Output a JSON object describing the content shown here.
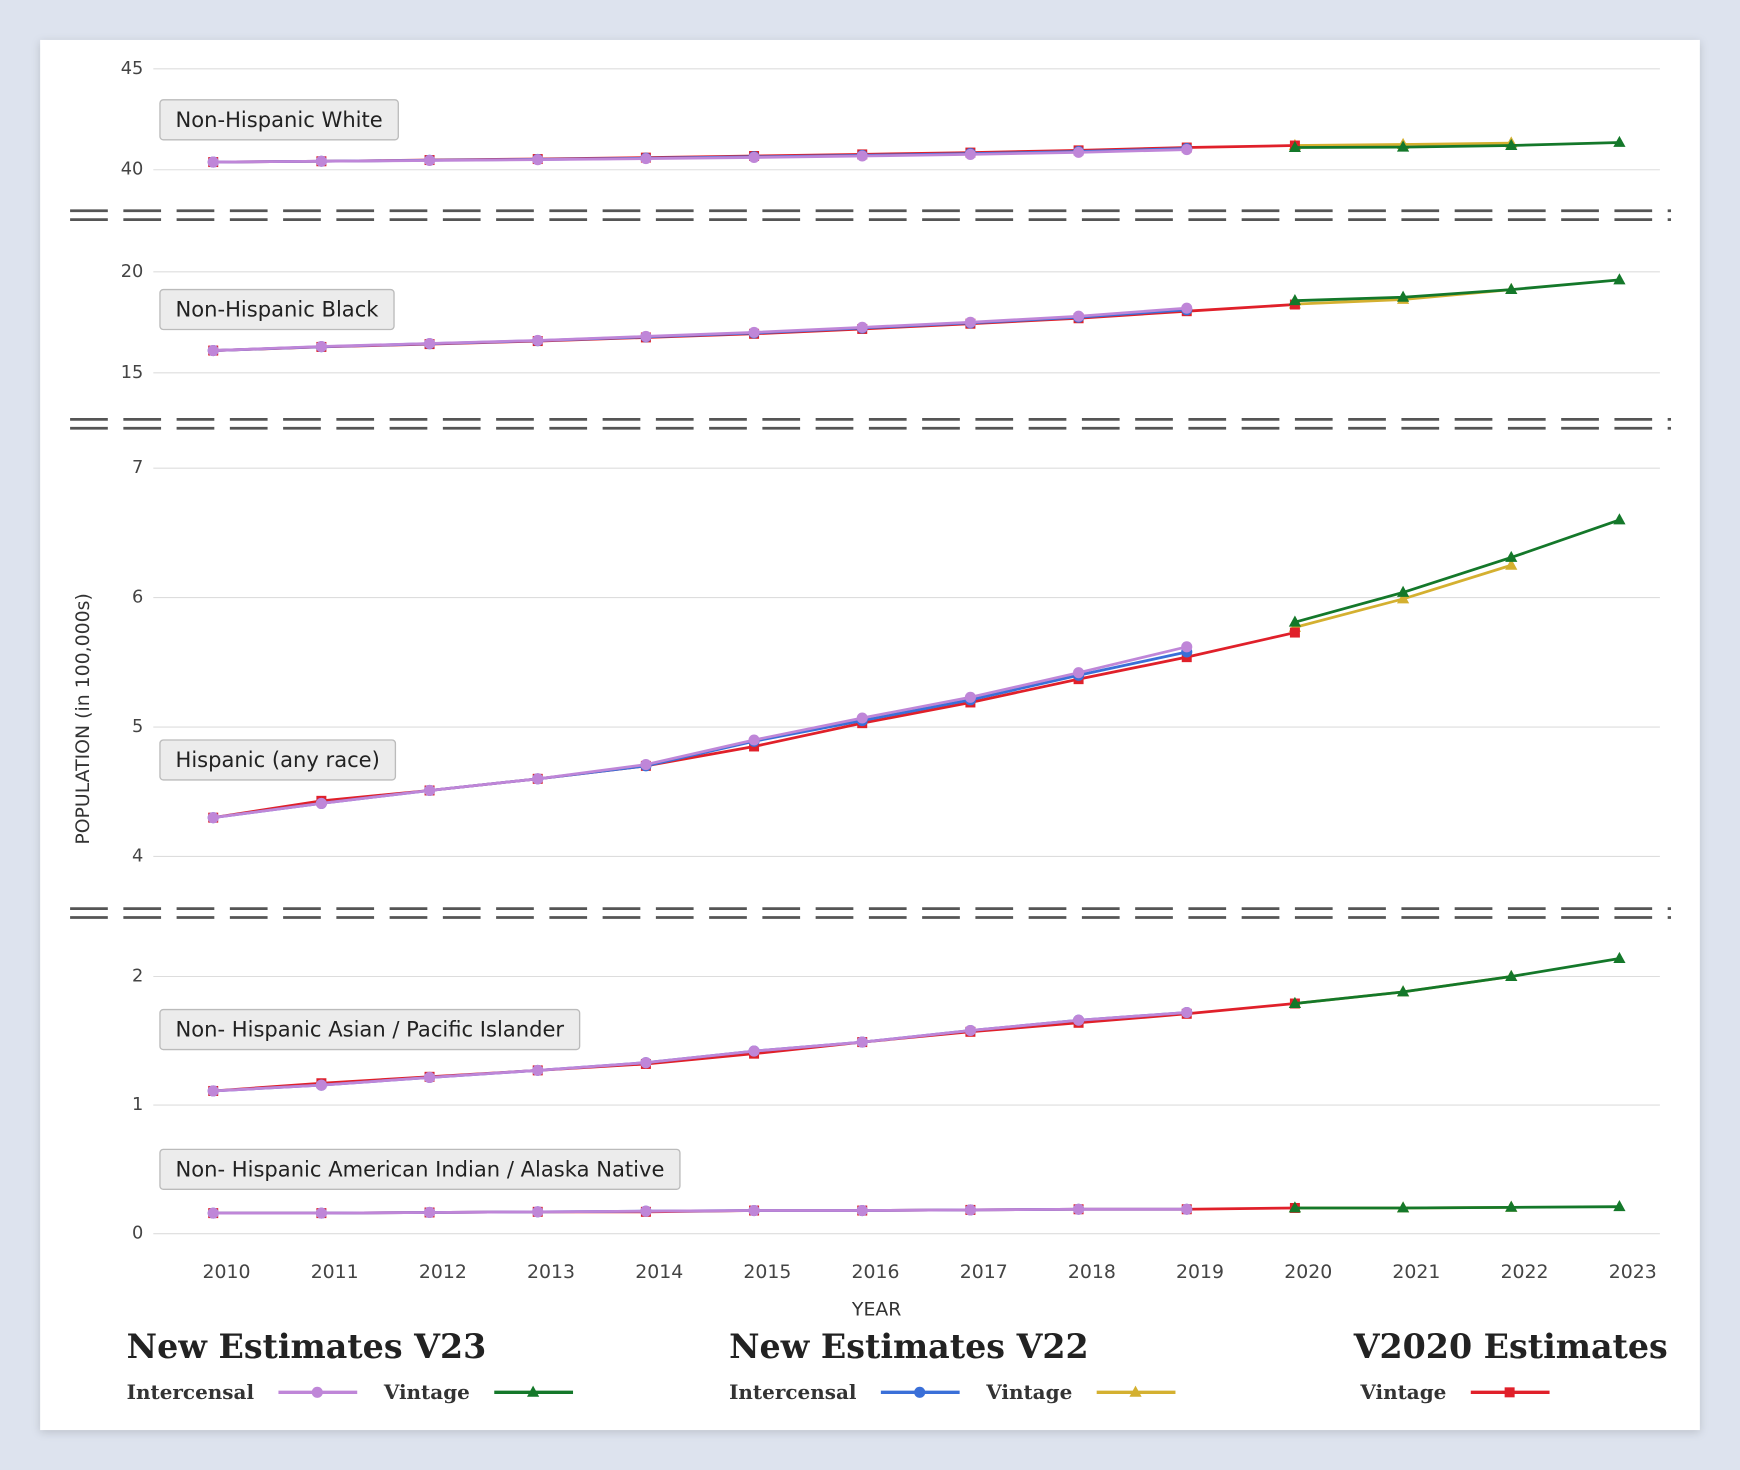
{
  "chart_data": {
    "type": "line",
    "ylabel": "POPULATION (in 100,000s)",
    "xlabel": "YEAR",
    "categories": [
      "2010",
      "2011",
      "2012",
      "2013",
      "2014",
      "2015",
      "2016",
      "2017",
      "2018",
      "2019",
      "2020",
      "2021",
      "2022",
      "2023"
    ],
    "grid": true,
    "legend": [
      {
        "title": "New Estimates V23",
        "items": [
          {
            "name": "Intercensal",
            "color": "#bf86d8",
            "marker": "circle"
          },
          {
            "name": "Vintage",
            "color": "#14782a",
            "marker": "triangle"
          }
        ]
      },
      {
        "title": "New Estimates V22",
        "items": [
          {
            "name": "Intercensal",
            "color": "#3a6fd8",
            "marker": "circle"
          },
          {
            "name": "Vintage",
            "color": "#d4b030",
            "marker": "triangle"
          }
        ]
      },
      {
        "title": "V2020 Estimates",
        "items": [
          {
            "name": "Vintage",
            "color": "#e0202a",
            "marker": "square"
          }
        ]
      }
    ],
    "panels": [
      {
        "ylim": [
          40,
          45
        ],
        "yticks": [
          40,
          45
        ],
        "groups": [
          {
            "label": "Non-Hispanic White",
            "series": [
              {
                "values": [
                  40.38,
                  40.42,
                  40.46,
                  40.5,
                  40.55,
                  40.61,
                  40.68,
                  40.76,
                  40.86,
                  41.0,
                  null,
                  null,
                  null,
                  null
                ]
              },
              {
                "values": [
                  null,
                  null,
                  null,
                  null,
                  null,
                  null,
                  null,
                  null,
                  null,
                  null,
                  41.1,
                  41.12,
                  41.2,
                  41.35
                ]
              },
              {
                "values": [
                  40.38,
                  40.42,
                  40.47,
                  40.51,
                  40.57,
                  40.64,
                  40.71,
                  40.8,
                  40.9,
                  41.05,
                  null,
                  null,
                  null,
                  null
                ]
              },
              {
                "values": [
                  null,
                  null,
                  null,
                  null,
                  null,
                  null,
                  null,
                  null,
                  null,
                  null,
                  41.2,
                  41.25,
                  41.32,
                  null
                ]
              },
              {
                "values": [
                  40.38,
                  40.42,
                  40.48,
                  40.53,
                  40.6,
                  40.68,
                  40.76,
                  40.85,
                  40.96,
                  41.1,
                  41.2,
                  null,
                  null,
                  null
                ]
              }
            ]
          }
        ]
      },
      {
        "ylim": [
          15,
          20
        ],
        "yticks": [
          15,
          20
        ],
        "groups": [
          {
            "label": "Non-Hispanic Black",
            "series": [
              {
                "values": [
                  16.1,
                  16.3,
                  16.45,
                  16.6,
                  16.8,
                  17.0,
                  17.25,
                  17.5,
                  17.8,
                  18.2,
                  null,
                  null,
                  null,
                  null
                ]
              },
              {
                "values": [
                  null,
                  null,
                  null,
                  null,
                  null,
                  null,
                  null,
                  null,
                  null,
                  null,
                  18.57,
                  18.74,
                  19.12,
                  19.6
                ]
              },
              {
                "values": [
                  16.1,
                  16.29,
                  16.44,
                  16.59,
                  16.78,
                  16.97,
                  17.22,
                  17.47,
                  17.75,
                  18.12,
                  null,
                  null,
                  null,
                  null
                ]
              },
              {
                "values": [
                  null,
                  null,
                  null,
                  null,
                  null,
                  null,
                  null,
                  null,
                  null,
                  null,
                  18.4,
                  18.63,
                  19.12,
                  null
                ]
              },
              {
                "values": [
                  16.1,
                  16.28,
                  16.42,
                  16.57,
                  16.75,
                  16.93,
                  17.17,
                  17.43,
                  17.7,
                  18.05,
                  18.38,
                  null,
                  null,
                  null
                ]
              }
            ]
          }
        ]
      },
      {
        "ylim": [
          4,
          7
        ],
        "yticks": [
          4,
          5,
          6,
          7
        ],
        "groups": [
          {
            "label": "Hispanic (any race)",
            "series": [
              {
                "values": [
                  4.3,
                  4.41,
                  4.51,
                  4.6,
                  4.71,
                  4.9,
                  5.07,
                  5.23,
                  5.42,
                  5.62,
                  null,
                  null,
                  null,
                  null
                ]
              },
              {
                "values": [
                  null,
                  null,
                  null,
                  null,
                  null,
                  null,
                  null,
                  null,
                  null,
                  null,
                  5.81,
                  6.04,
                  6.31,
                  6.6
                ]
              },
              {
                "values": [
                  4.3,
                  4.41,
                  4.51,
                  4.6,
                  4.7,
                  4.89,
                  5.05,
                  5.21,
                  5.4,
                  5.58,
                  null,
                  null,
                  null,
                  null
                ]
              },
              {
                "values": [
                  null,
                  null,
                  null,
                  null,
                  null,
                  null,
                  null,
                  null,
                  null,
                  null,
                  5.77,
                  5.99,
                  6.25,
                  null
                ]
              },
              {
                "values": [
                  4.3,
                  4.43,
                  4.51,
                  4.6,
                  4.7,
                  4.85,
                  5.03,
                  5.19,
                  5.37,
                  5.54,
                  5.73,
                  null,
                  null,
                  null
                ]
              }
            ]
          }
        ]
      },
      {
        "ylim": [
          0,
          2.2
        ],
        "yticks": [
          0,
          1,
          2
        ],
        "groups": [
          {
            "label": "Non- Hispanic Asian / Pacific Islander",
            "series": [
              {
                "values": [
                  1.11,
                  1.155,
                  1.215,
                  1.27,
                  1.33,
                  1.42,
                  1.49,
                  1.58,
                  1.66,
                  1.72,
                  null,
                  null,
                  null,
                  null
                ]
              },
              {
                "values": [
                  null,
                  null,
                  null,
                  null,
                  null,
                  null,
                  null,
                  null,
                  null,
                  null,
                  1.79,
                  1.88,
                  2.0,
                  2.14
                ]
              },
              {
                "values": [
                  1.11,
                  1.155,
                  1.215,
                  1.27,
                  1.33,
                  1.42,
                  1.49,
                  1.58,
                  1.66,
                  1.72,
                  null,
                  null,
                  null,
                  null
                ]
              },
              {
                "values": [
                  null,
                  null,
                  null,
                  null,
                  null,
                  null,
                  null,
                  null,
                  null,
                  null,
                  1.79,
                  1.88,
                  2.0,
                  null
                ]
              },
              {
                "values": [
                  1.11,
                  1.17,
                  1.22,
                  1.27,
                  1.32,
                  1.4,
                  1.49,
                  1.57,
                  1.64,
                  1.71,
                  1.79,
                  null,
                  null,
                  null
                ]
              }
            ]
          },
          {
            "label": "Non- Hispanic American Indian / Alaska Native",
            "series": [
              {
                "values": [
                  0.16,
                  0.16,
                  0.165,
                  0.17,
                  0.175,
                  0.18,
                  0.18,
                  0.185,
                  0.19,
                  0.19,
                  null,
                  null,
                  null,
                  null
                ]
              },
              {
                "values": [
                  null,
                  null,
                  null,
                  null,
                  null,
                  null,
                  null,
                  null,
                  null,
                  null,
                  0.2,
                  0.2,
                  0.205,
                  0.21
                ]
              },
              {
                "values": [
                  0.16,
                  0.16,
                  0.165,
                  0.17,
                  0.175,
                  0.18,
                  0.18,
                  0.185,
                  0.19,
                  0.19,
                  null,
                  null,
                  null,
                  null
                ]
              },
              {
                "values": [
                  null,
                  null,
                  null,
                  null,
                  null,
                  null,
                  null,
                  null,
                  null,
                  null,
                  0.2,
                  0.2,
                  0.205,
                  null
                ]
              },
              {
                "values": [
                  0.16,
                  0.16,
                  0.165,
                  0.17,
                  0.17,
                  0.18,
                  0.18,
                  0.185,
                  0.19,
                  0.19,
                  0.2,
                  null,
                  null,
                  null
                ]
              }
            ]
          }
        ]
      }
    ]
  }
}
